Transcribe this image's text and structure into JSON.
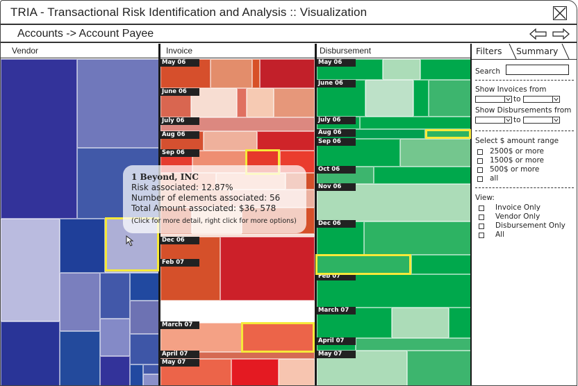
{
  "window": {
    "title": "TRIA - Transactional Risk Identification and Analysis :: Visualization",
    "close_icon": "close-x-box-icon"
  },
  "nav": {
    "breadcrumb": "Accounts -> Account Payee",
    "back_icon": "arrow-left-icon",
    "forward_icon": "arrow-right-icon"
  },
  "columns": {
    "vendor": "Vendor",
    "invoice": "Invoice",
    "disbursement": "Disbursement"
  },
  "colors": {
    "vendor": "#33339a",
    "invoice": "#d04a28",
    "disbursement": "#00a84c",
    "highlight": "#f6e93a"
  },
  "invoice_months": [
    "May 06",
    "June 06",
    "July 06",
    "Aug 06",
    "Sep 06",
    "Dec 06",
    "Feb 07",
    "March 07",
    "April 07",
    "May 07"
  ],
  "disbursement_months": [
    "May 06",
    "June 06",
    "July 06",
    "Aug 06",
    "Sep 06",
    "Oct 06",
    "Nov 06",
    "Dec 06",
    "Feb 07",
    "March 07",
    "April 07",
    "May 07"
  ],
  "tooltip": {
    "name": "1 Beyond, INC",
    "risk": "Risk associated: 12.87%",
    "elements": "Number of elements associated: 56",
    "amount": "Total Amount associated: $36, 578",
    "hint": "(Click for more detail, right click for more options)"
  },
  "panel": {
    "tabs": [
      "Filters",
      "Summary"
    ],
    "search_label": "Search",
    "search_value": "",
    "invoices_from_label": "Show Invoices from",
    "disbursements_from_label": "Show Disbursements from",
    "to_label": "to",
    "amount_range_label": "Select $ amount range",
    "amount_options": [
      "2500$ or more",
      "1500$ or more",
      "500$ or more",
      "all"
    ],
    "view_label": "View:",
    "view_options": [
      "Invoice Only",
      "Vendor Only",
      "Disbursement Only",
      "All"
    ]
  }
}
